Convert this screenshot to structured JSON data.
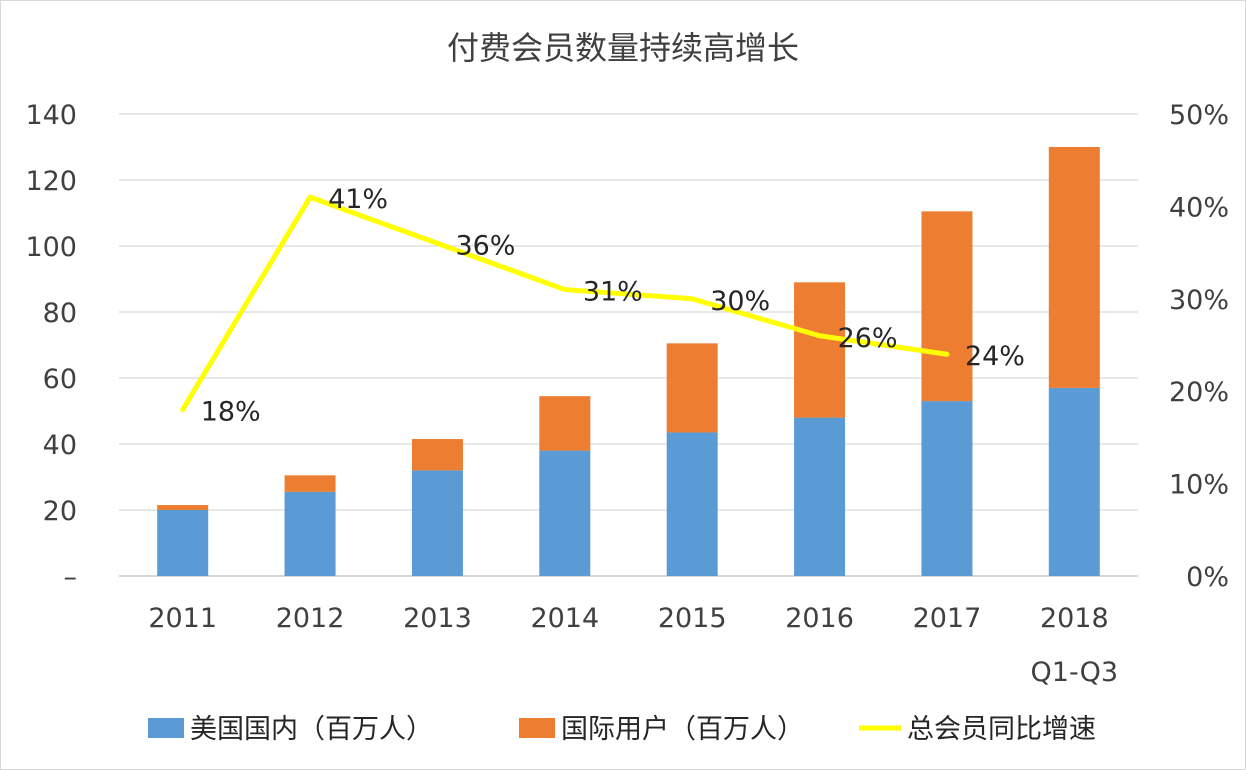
{
  "chart_data": {
    "type": "bar",
    "title": "付费会员数量持续高增长",
    "categories": [
      "2011",
      "2012",
      "2013",
      "2014",
      "2015",
      "2016",
      "2017",
      "2018"
    ],
    "category_sublabels": [
      "",
      "",
      "",
      "",
      "",
      "",
      "",
      "Q1-Q3"
    ],
    "stacked": true,
    "series": [
      {
        "name": "美国国内（百万人）",
        "type": "bar",
        "axis": "left",
        "color": "#5B9BD5",
        "values": [
          20,
          25.5,
          32,
          38,
          43.5,
          48,
          53,
          57
        ]
      },
      {
        "name": "国际用户（百万人）",
        "type": "bar",
        "axis": "left",
        "color": "#ED7D31",
        "values": [
          1.5,
          5,
          9.5,
          16.5,
          27,
          41,
          57.5,
          73
        ]
      },
      {
        "name": "总会员同比增速",
        "type": "line",
        "axis": "right",
        "color": "#FFFF00",
        "values": [
          18,
          41,
          36,
          31,
          30,
          26,
          24,
          null
        ],
        "labels": [
          "18%",
          "41%",
          "36%",
          "31%",
          "30%",
          "26%",
          "24%",
          ""
        ]
      }
    ],
    "y_left": {
      "min": 0,
      "max": 140,
      "step": 20,
      "tick_labels": [
        "–",
        "20",
        "40",
        "60",
        "80",
        "100",
        "120",
        "140"
      ]
    },
    "y_right": {
      "min": 0,
      "max": 50,
      "step": 10,
      "tick_labels": [
        "0%",
        "10%",
        "20%",
        "30%",
        "40%",
        "50%"
      ]
    },
    "grid": true,
    "legend_position": "bottom"
  }
}
